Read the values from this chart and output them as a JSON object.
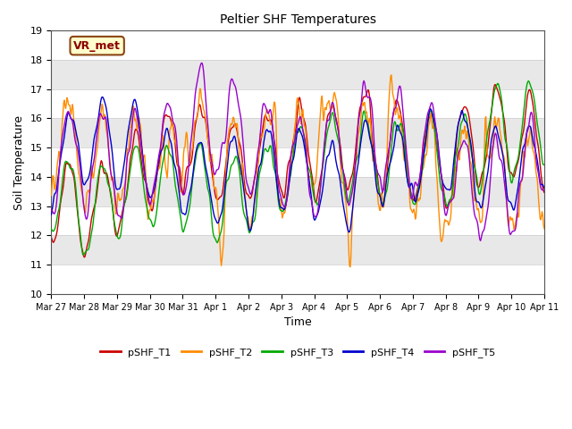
{
  "title": "Peltier SHF Temperatures",
  "xlabel": "Time",
  "ylabel": "Soil Temperature",
  "ylim": [
    10.0,
    19.0
  ],
  "yticks": [
    10.0,
    11.0,
    12.0,
    13.0,
    14.0,
    15.0,
    16.0,
    17.0,
    18.0,
    19.0
  ],
  "series_colors": [
    "#cc0000",
    "#ff8c00",
    "#00aa00",
    "#0000cc",
    "#9900cc"
  ],
  "series_labels": [
    "pSHF_T1",
    "pSHF_T2",
    "pSHF_T3",
    "pSHF_T4",
    "pSHF_T5"
  ],
  "annotation_text": "VR_met",
  "bg_color": "#ffffff",
  "plot_bg_color": "#f0f0f0",
  "grid_color": "#ffffff",
  "linewidth": 1.0,
  "n_points": 720,
  "start_day": 0,
  "end_day": 15,
  "x_tick_labels": [
    "Mar 27",
    "Mar 28",
    "Mar 29",
    "Mar 30",
    "Mar 31",
    "Apr 1",
    "Apr 2",
    "Apr 3",
    "Apr 4",
    "Apr 5",
    "Apr 6",
    "Apr 7",
    "Apr 8",
    "Apr 9",
    "Apr 10",
    "Apr 11"
  ],
  "x_tick_positions": [
    0,
    1,
    2,
    3,
    4,
    5,
    6,
    7,
    8,
    9,
    10,
    11,
    12,
    13,
    14,
    15
  ]
}
